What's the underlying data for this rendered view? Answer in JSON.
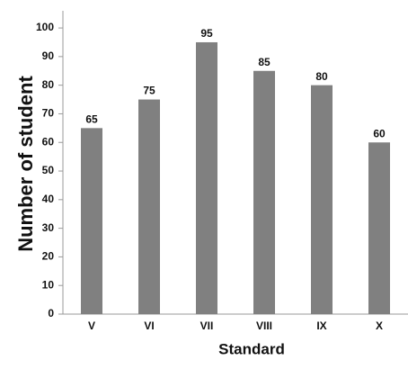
{
  "chart_data": {
    "type": "bar",
    "x_label": "Standard",
    "y_label": "Number of student",
    "categories": [
      "V",
      "VI",
      "VII",
      "VIII",
      "IX",
      "X"
    ],
    "values": [
      65,
      75,
      95,
      85,
      80,
      60
    ],
    "color": "#808080",
    "ylim": [
      0,
      106
    ],
    "yticks": [
      0,
      10,
      20,
      30,
      40,
      50,
      60,
      70,
      80,
      90,
      100
    ],
    "grid": false,
    "data_labels": true
  }
}
